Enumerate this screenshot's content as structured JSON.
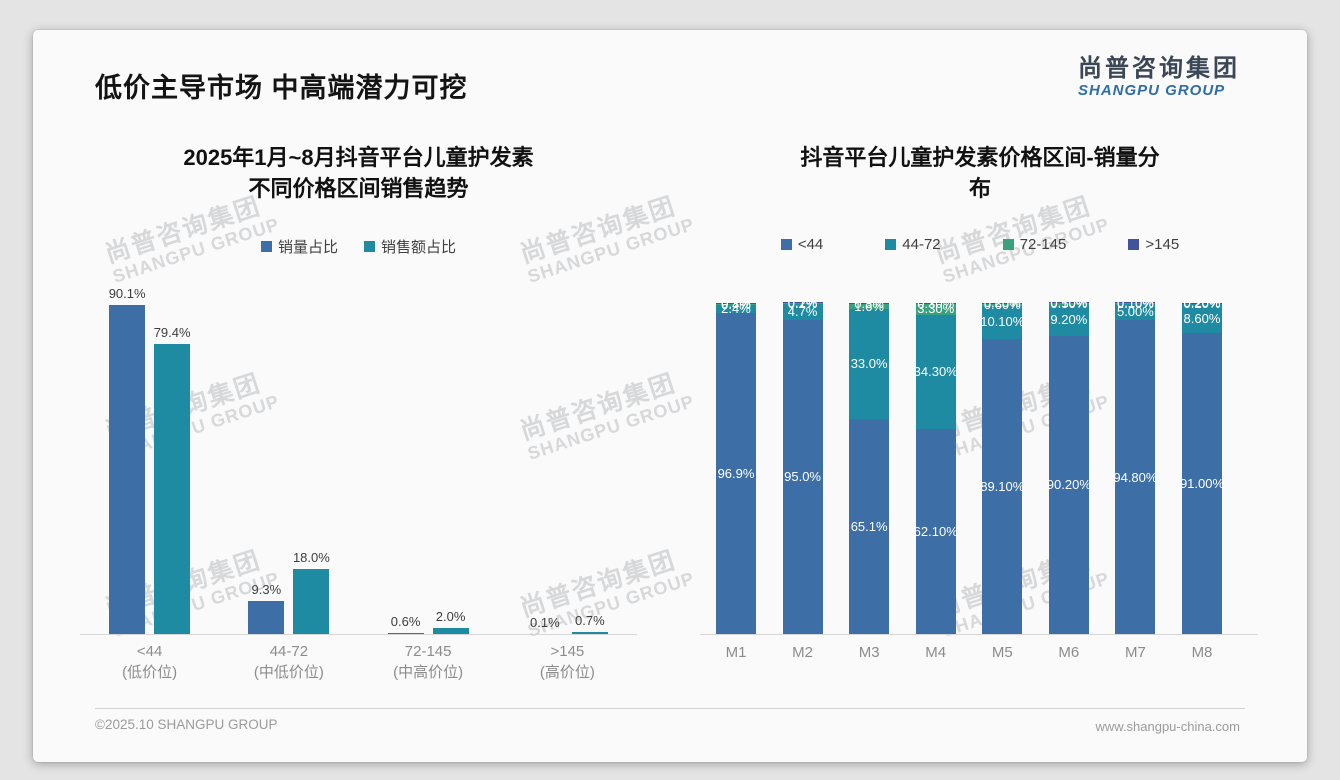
{
  "page": {
    "title": "低价主导市场 中高端潜力可挖",
    "logo": {
      "cn": "尚普咨询集团",
      "en": "SHANGPU GROUP"
    },
    "footer": {
      "copyright": "©2025.10 SHANGPU GROUP",
      "website": "www.shangpu-china.com"
    },
    "watermark": {
      "cn": "尚普咨询集团",
      "en": "SHANGPU GROUP"
    }
  },
  "colors": {
    "blue": "#3d6fa6",
    "teal": "#1f8ba3",
    "green": "#3aa17e",
    "indigo": "#41539b",
    "axis": "#d6d6d6",
    "label_dark": "#3d3d3d",
    "label_white": "#ffffff",
    "axis_text": "#8c8c8c"
  },
  "chart_data": [
    {
      "type": "bar",
      "stacked": false,
      "title": "2025年1月~8月抖音平台儿童护发素不同价格区间销售趋势",
      "title_lines": [
        "2025年1月~8月抖音平台儿童护发素",
        "不同价格区间销售趋势"
      ],
      "xlabel": "",
      "ylabel": "",
      "ylim": [
        0,
        100
      ],
      "grid": false,
      "legend_position": "top",
      "categories": [
        {
          "line1": "<44",
          "line2": "(低价位)"
        },
        {
          "line1": "44-72",
          "line2": "(中低价位)"
        },
        {
          "line1": "72-145",
          "line2": "(中高价位)"
        },
        {
          "line1": ">145",
          "line2": "(高价位)"
        }
      ],
      "series": [
        {
          "name": "销量占比",
          "color_key": "blue",
          "values": [
            90.1,
            9.3,
            0.6,
            0.1
          ],
          "labels": [
            "90.1%",
            "9.3%",
            "0.6%",
            "0.1%"
          ]
        },
        {
          "name": "销售额占比",
          "color_key": "teal",
          "values": [
            79.4,
            18.0,
            2.0,
            0.7
          ],
          "labels": [
            "79.4%",
            "18.0%",
            "2.0%",
            "0.7%"
          ]
        }
      ]
    },
    {
      "type": "bar",
      "stacked": true,
      "title": "抖音平台儿童护发素价格区间-销量分布",
      "title_lines": [
        "抖音平台儿童护发素价格区间-销量分",
        "布"
      ],
      "xlabel": "",
      "ylabel": "",
      "ylim": [
        0,
        100
      ],
      "grid": false,
      "legend_position": "top",
      "categories": [
        "M1",
        "M2",
        "M3",
        "M4",
        "M5",
        "M6",
        "M7",
        "M8"
      ],
      "series": [
        {
          "name": "<44",
          "color_key": "blue",
          "values": [
            96.9,
            95.0,
            65.1,
            62.1,
            89.1,
            90.2,
            94.8,
            91.0
          ],
          "labels": [
            "96.9%",
            "95.0%",
            "65.1%",
            "62.10%",
            "89.10%",
            "90.20%",
            "94.80%",
            "91.00%"
          ]
        },
        {
          "name": "44-72",
          "color_key": "teal",
          "values": [
            2.4,
            4.7,
            33.0,
            34.3,
            10.1,
            9.2,
            5.0,
            8.6
          ],
          "labels": [
            "2.4%",
            "4.7%",
            "33.0%",
            "34.30%",
            "10.10%",
            "9.20%",
            "5.00%",
            "8.60%"
          ]
        },
        {
          "name": "72-145",
          "color_key": "green",
          "values": [
            0.4,
            0.2,
            1.6,
            3.3,
            0.6,
            0.5,
            0.1,
            0.2
          ],
          "labels": [
            "0.4%",
            "0.2%",
            "1.6%",
            "3.30%",
            "0.60%",
            "0.50%",
            "0.10%",
            "0.20%"
          ]
        },
        {
          "name": ">145",
          "color_key": "indigo",
          "values": [
            0.3,
            0.1,
            0.3,
            0.3,
            0.2,
            0.1,
            0.1,
            0.2
          ],
          "labels": [
            "0.3%",
            "0.1%",
            "0.3%",
            "0.30%",
            "0.20%",
            "0.10%",
            "0.10%",
            "0.20%"
          ]
        }
      ]
    }
  ]
}
